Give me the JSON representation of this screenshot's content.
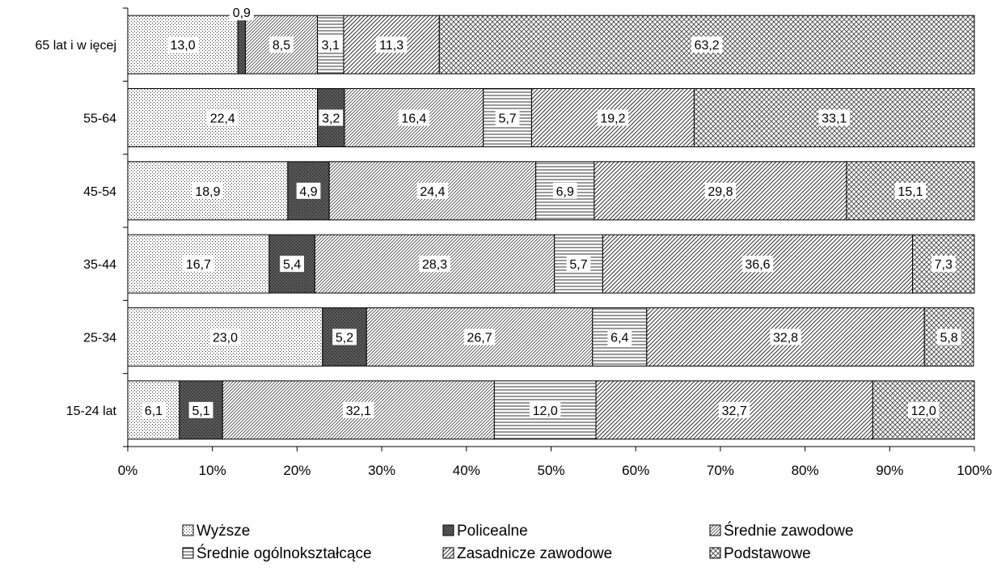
{
  "chart_data": {
    "type": "bar",
    "orientation": "horizontal",
    "stacked": "100%",
    "categories": [
      "65 lat i w ięcej",
      "55-64",
      "45-54",
      "35-44",
      "25-34",
      "15-24 lat"
    ],
    "series": [
      {
        "name": "Wyższe",
        "values": [
          13.0,
          22.4,
          18.9,
          16.7,
          23.0,
          6.1
        ],
        "labels": [
          "13,0",
          "22,4",
          "18,9",
          "16,7",
          "23,0",
          "6,1"
        ]
      },
      {
        "name": "Policealne",
        "values": [
          0.9,
          3.2,
          4.9,
          5.4,
          5.2,
          5.1
        ],
        "labels": [
          "0,9",
          "3,2",
          "4,9",
          "5,4",
          "5,2",
          "5,1"
        ]
      },
      {
        "name": "Średnie zawodowe",
        "values": [
          8.5,
          16.4,
          24.4,
          28.3,
          26.7,
          32.1
        ],
        "labels": [
          "8,5",
          "16,4",
          "24,4",
          "28,3",
          "26,7",
          "32,1"
        ]
      },
      {
        "name": "Średnie ogólnokształcące",
        "values": [
          3.1,
          5.7,
          6.9,
          5.7,
          6.4,
          12.0
        ],
        "labels": [
          "3,1",
          "5,7",
          "6,9",
          "5,7",
          "6,4",
          "12,0"
        ]
      },
      {
        "name": "Zasadnicze zawodowe",
        "values": [
          11.3,
          19.2,
          29.8,
          36.6,
          32.8,
          32.7
        ],
        "labels": [
          "11,3",
          "19,2",
          "29,8",
          "36,6",
          "32,8",
          "32,7"
        ]
      },
      {
        "name": "Podstawowe",
        "values": [
          63.2,
          33.1,
          15.1,
          7.3,
          5.8,
          12.0
        ],
        "labels": [
          "63,2",
          "33,1",
          "15,1",
          "7,3",
          "5,8",
          "12,0"
        ]
      }
    ],
    "x_ticks": [
      "0%",
      "10%",
      "20%",
      "30%",
      "40%",
      "50%",
      "60%",
      "70%",
      "80%",
      "90%",
      "100%"
    ],
    "xlim": [
      0,
      100
    ],
    "legend_position": "bottom",
    "grid": false,
    "patterns": [
      "dots-light",
      "solid-dark",
      "diagonal-fine",
      "horizontal-lines",
      "diagonal-wide",
      "crosshatch"
    ],
    "colors": {
      "background": "#ffffff",
      "stroke": "#000000",
      "dark_fill": "#555555",
      "pattern_ink": "#333333"
    }
  }
}
